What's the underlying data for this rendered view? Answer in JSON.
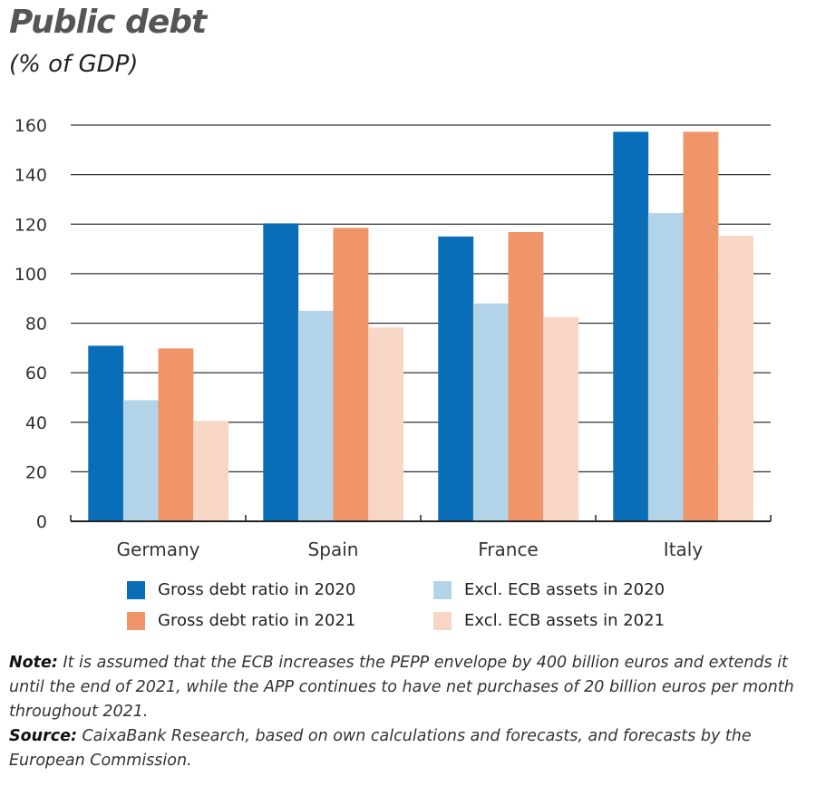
{
  "header": {
    "title": "Public debt",
    "subtitle": "(% of GDP)"
  },
  "chart_data": {
    "type": "bar",
    "title": "Public debt",
    "subtitle": "(% of GDP)",
    "xlabel": "",
    "ylabel": "",
    "ylim": [
      0,
      160
    ],
    "yticks": [
      0,
      20,
      40,
      60,
      80,
      100,
      120,
      140,
      160
    ],
    "grid": true,
    "categories": [
      "Germany",
      "Spain",
      "France",
      "Italy"
    ],
    "series": [
      {
        "name": "Gross debt ratio in 2020",
        "color": "#0a6db8",
        "values": [
          70.9,
          120.3,
          115.0,
          157.3
        ]
      },
      {
        "name": "Excl. ECB assets in 2020",
        "color": "#b3d4e8",
        "values": [
          48.9,
          85.0,
          88.0,
          124.5
        ]
      },
      {
        "name": "Gross debt ratio in 2021",
        "color": "#f0956a",
        "values": [
          69.8,
          118.5,
          116.8,
          157.3
        ]
      },
      {
        "name": "Excl. ECB assets in 2021",
        "color": "#f8d6c6",
        "values": [
          40.5,
          78.3,
          82.5,
          115.3
        ]
      }
    ],
    "legend_position": "bottom"
  },
  "legend": {
    "items": [
      {
        "label": "Gross debt ratio in 2020",
        "color": "#0a6db8"
      },
      {
        "label": "Excl. ECB assets in 2020",
        "color": "#b3d4e8"
      },
      {
        "label": "Gross debt ratio in 2021",
        "color": "#f0956a"
      },
      {
        "label": "Excl. ECB assets in 2021",
        "color": "#f8d6c6"
      }
    ]
  },
  "notes": {
    "note_label": "Note:",
    "note_text": " It is assumed that the ECB increases the PEPP envelope by 400 billion euros and extends it until the end of 2021, while the APP continues to have net purchases of 20 billion euros per month throughout 2021.",
    "source_label": "Source:",
    "source_text": " CaixaBank Research, based on own calculations and forecasts, and forecasts by the European Commission."
  }
}
